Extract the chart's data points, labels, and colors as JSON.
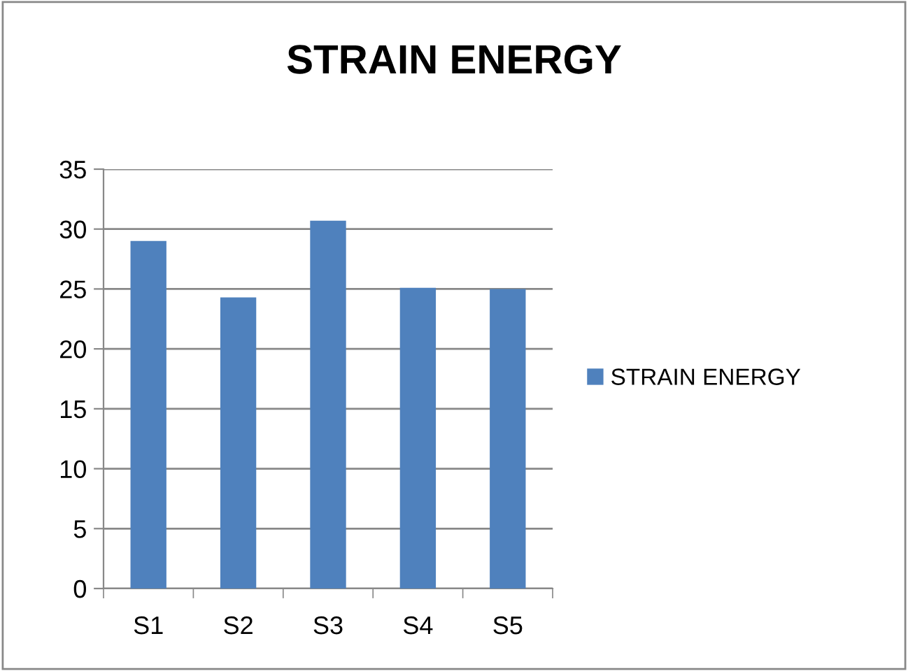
{
  "chart_data": {
    "type": "bar",
    "title": "STRAIN ENERGY",
    "categories": [
      "S1",
      "S2",
      "S3",
      "S4",
      "S5"
    ],
    "series": [
      {
        "name": "STRAIN ENERGY",
        "color": "#4f81bd",
        "values": [
          29.0,
          24.3,
          30.7,
          25.1,
          25.0
        ]
      }
    ],
    "ylim": [
      0,
      35
    ],
    "yticks": [
      0,
      5,
      10,
      15,
      20,
      25,
      30,
      35
    ],
    "grid": "y",
    "legend": "right"
  }
}
